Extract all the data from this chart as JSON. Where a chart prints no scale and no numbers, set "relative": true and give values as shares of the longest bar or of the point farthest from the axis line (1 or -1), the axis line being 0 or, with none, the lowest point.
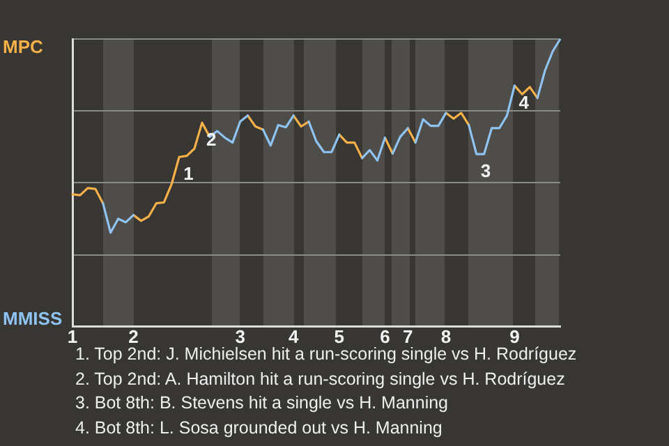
{
  "chart_data": {
    "type": "line",
    "relative": true,
    "categories": [
      "1",
      null,
      null,
      null,
      null,
      null,
      null,
      null,
      "2",
      null,
      null,
      null,
      null,
      null,
      null,
      null,
      null,
      null,
      null,
      null,
      null,
      null,
      "3",
      null,
      null,
      null,
      null,
      null,
      null,
      "4",
      null,
      null,
      null,
      null,
      null,
      "5",
      null,
      null,
      null,
      null,
      null,
      "6",
      null,
      null,
      "7",
      null,
      null,
      null,
      null,
      "8",
      null,
      null,
      null,
      null,
      null,
      null,
      null,
      null,
      "9",
      null,
      null,
      null,
      null,
      null,
      null
    ],
    "series": [
      {
        "name": "MPC",
        "color": "#f5b04a",
        "values": [
          0.46,
          0.457,
          0.482,
          0.479,
          0.429,
          null,
          null,
          null,
          0.388,
          0.368,
          0.383,
          0.429,
          0.432,
          0.495,
          0.59,
          0.594,
          0.619,
          0.709,
          0.66,
          null,
          null,
          null,
          null,
          0.734,
          0.696,
          0.685,
          null,
          null,
          null,
          0.734,
          0.696,
          0.713,
          null,
          null,
          null,
          0.668,
          0.64,
          0.64,
          0.586,
          null,
          null,
          0.657,
          0.602,
          null,
          0.69,
          0.64,
          null,
          null,
          null,
          0.743,
          0.723,
          0.743,
          0.701,
          null,
          null,
          null,
          null,
          null,
          0.838,
          0.808,
          0.833,
          0.795,
          null,
          null,
          null
        ]
      },
      {
        "name": "MMISS",
        "color": "#8ec3f2",
        "values": [
          null,
          null,
          null,
          null,
          0.429,
          0.327,
          0.375,
          0.363,
          0.388,
          null,
          null,
          null,
          null,
          null,
          null,
          null,
          null,
          null,
          0.66,
          0.68,
          0.657,
          0.64,
          0.713,
          0.734,
          null,
          0.685,
          0.63,
          0.701,
          0.693,
          0.734,
          null,
          0.713,
          0.644,
          0.607,
          0.607,
          0.668,
          null,
          null,
          0.586,
          0.614,
          0.578,
          0.657,
          0.602,
          0.66,
          0.69,
          0.64,
          0.721,
          0.698,
          0.698,
          0.743,
          null,
          null,
          0.701,
          0.6,
          0.6,
          0.69,
          0.69,
          0.734,
          0.838,
          null,
          null,
          0.795,
          0.891,
          0.957,
          1
        ]
      }
    ],
    "grid": "y",
    "marker": "none",
    "annotations": [
      "1",
      "2",
      "3",
      "4",
      "1. Top 2nd: J. Michielsen hit a run-scoring single vs H. Rodríguez",
      "2. Top 2nd: A. Hamilton hit a run-scoring single vs H. Rodríguez",
      "3. Bot 8th: B. Stevens hit a single vs H. Manning",
      "4. Bot 8th: L. Sosa grounded out vs H. Manning"
    ],
    "legend": false
  }
}
